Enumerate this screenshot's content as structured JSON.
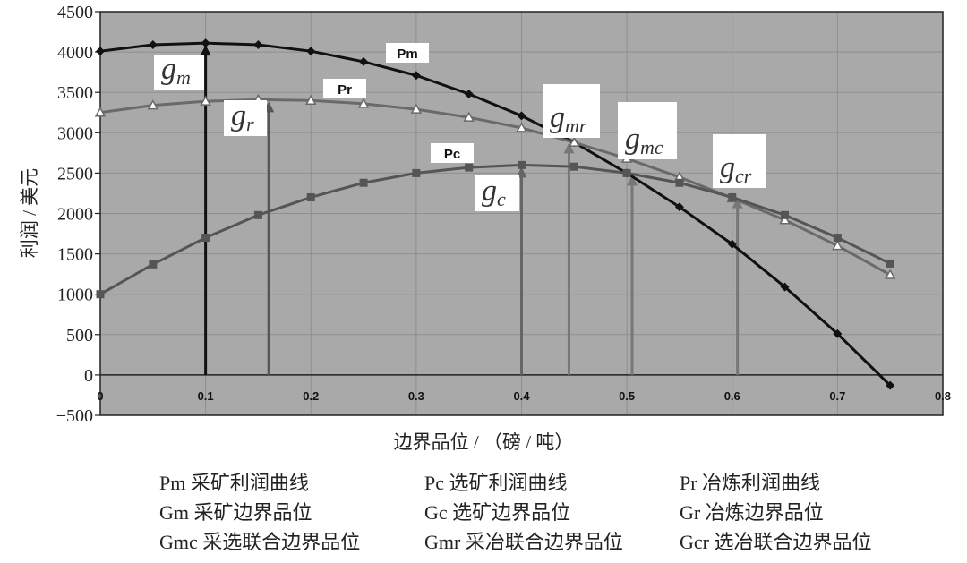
{
  "chart_data": {
    "type": "line",
    "xlabel": "边界品位 / （磅 / 吨）",
    "ylabel": "利润 / 美元",
    "xlim": [
      0,
      0.8
    ],
    "ylim": [
      -500,
      4500
    ],
    "x_ticks": [
      "0",
      "0.1",
      "0.2",
      "0.3",
      "0.4",
      "0.5",
      "0.6",
      "0.7",
      "0.8"
    ],
    "y_ticks": [
      "4500",
      "4000",
      "3500",
      "3000",
      "2500",
      "2000",
      "1500",
      "1000",
      "500",
      "0",
      "−500"
    ],
    "grid": true,
    "series": [
      {
        "name": "Pm",
        "color": "#111111",
        "marker": "diamond",
        "x": [
          0,
          0.05,
          0.1,
          0.15,
          0.2,
          0.25,
          0.3,
          0.35,
          0.4,
          0.45,
          0.5,
          0.55,
          0.6,
          0.65,
          0.7,
          0.75
        ],
        "y": [
          4010,
          4090,
          4110,
          4090,
          4010,
          3880,
          3710,
          3480,
          3210,
          2880,
          2500,
          2080,
          1620,
          1090,
          510,
          -130
        ]
      },
      {
        "name": "Pr",
        "color": "#6a6a6a",
        "marker": "triangle",
        "x": [
          0,
          0.05,
          0.1,
          0.15,
          0.2,
          0.25,
          0.3,
          0.35,
          0.4,
          0.45,
          0.5,
          0.55,
          0.6,
          0.65,
          0.7,
          0.75
        ],
        "y": [
          3250,
          3340,
          3390,
          3410,
          3400,
          3360,
          3290,
          3190,
          3060,
          2880,
          2680,
          2450,
          2190,
          1920,
          1600,
          1240
        ]
      },
      {
        "name": "Pc",
        "color": "#555555",
        "marker": "square",
        "x": [
          0,
          0.05,
          0.1,
          0.15,
          0.2,
          0.25,
          0.3,
          0.35,
          0.4,
          0.45,
          0.5,
          0.55,
          0.6,
          0.65,
          0.7,
          0.75
        ],
        "y": [
          1000,
          1370,
          1700,
          1980,
          2200,
          2380,
          2500,
          2570,
          2600,
          2580,
          2500,
          2380,
          2200,
          1980,
          1700,
          1380
        ]
      }
    ],
    "curve_tags": [
      "Pm",
      "Pr",
      "Pc"
    ],
    "markers": [
      {
        "x": 0.1,
        "top": 4110,
        "label": "g",
        "sub": "m",
        "color": "#111111"
      },
      {
        "x": 0.16,
        "top": 3410,
        "label": "g",
        "sub": "r",
        "color": "#555555"
      },
      {
        "x": 0.4,
        "top": 2600,
        "label": "g",
        "sub": "c",
        "color": "#666666"
      },
      {
        "x": 0.445,
        "top": 2900,
        "label": "g",
        "sub": "mr",
        "color": "#777777"
      },
      {
        "x": 0.505,
        "top": 2500,
        "label": "g",
        "sub": "mc",
        "color": "#777777"
      },
      {
        "x": 0.605,
        "top": 2220,
        "label": "g",
        "sub": "cr",
        "color": "#777777"
      }
    ]
  },
  "legend": {
    "rows": [
      [
        "Pm 采矿利润曲线",
        "Pc 选矿利润曲线",
        "Pr 冶炼利润曲线"
      ],
      [
        "Gm 采矿边界品位",
        "Gc 选矿边界品位",
        "Gr 冶炼边界品位"
      ],
      [
        "Gmc 采选联合边界品位",
        "Gmr 采冶联合边界品位",
        "Gcr 选冶联合边界品位"
      ]
    ]
  },
  "colors": {
    "plot_bg": "#a9a9a9",
    "grid": "#8f8f8f",
    "axis": "#222222"
  }
}
